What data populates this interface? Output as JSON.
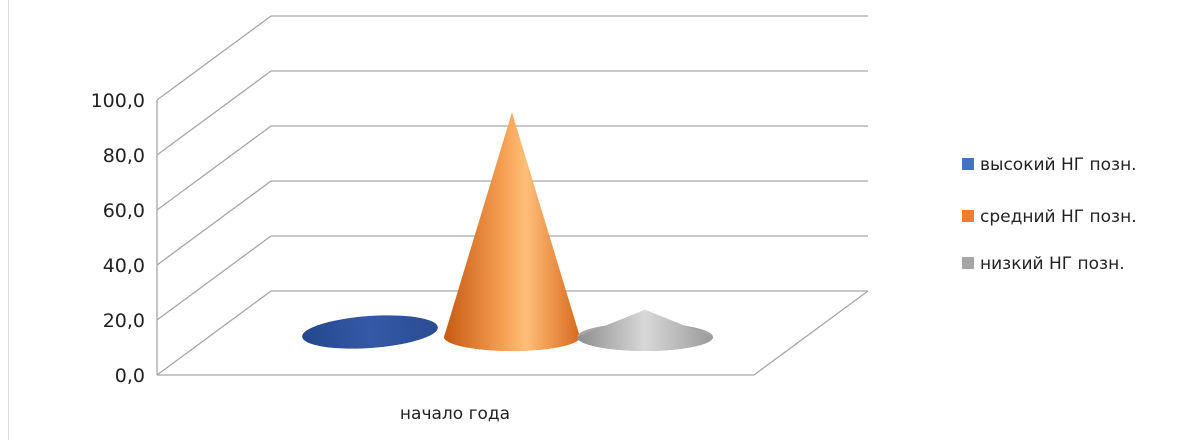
{
  "chart_data": {
    "type": "bar",
    "shape": "3d-cone",
    "categories": [
      "начало года"
    ],
    "series": [
      {
        "name": "высокий НГ позн.",
        "values": [
          0.0
        ],
        "color": "#2f55a2"
      },
      {
        "name": "средний НГ позн.",
        "values": [
          88.0
        ],
        "color": "#ed7d31"
      },
      {
        "name": "низкий НГ позн.",
        "values": [
          12.0
        ],
        "color": "#a5a5a5"
      }
    ],
    "y_ticks": [
      "0,0",
      "20,0",
      "40,0",
      "60,0",
      "80,0",
      "100,0"
    ],
    "ylim": [
      0,
      100
    ],
    "grid": true,
    "legend_position": "right"
  }
}
